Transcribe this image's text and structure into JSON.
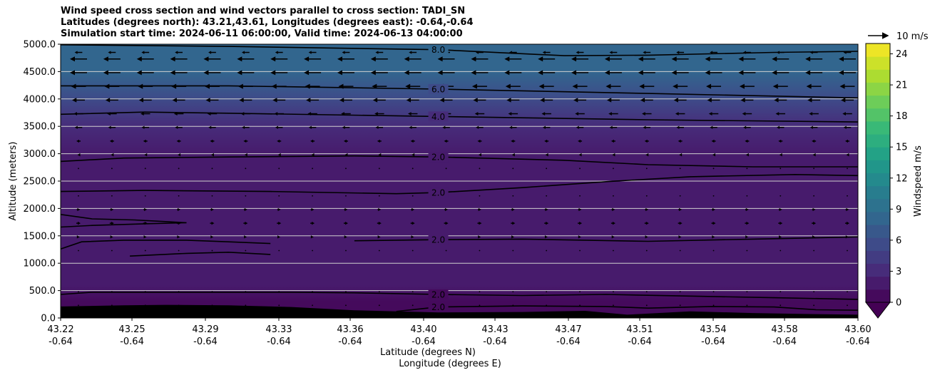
{
  "chart_data": {
    "type": "heatmap",
    "title_lines": [
      "Wind speed cross section and wind vectors parallel to cross section: TADI_SN",
      "Latitudes (degrees north): 43.21,43.61, Longitudes (degrees east): -0.64,-0.64",
      "Simulation start time: 2024-06-11 06:00:00, Valid time: 2024-06-13 04:00:00"
    ],
    "xlabel_line1": "Latitude (degrees N)",
    "xlabel_line2": "Longitude (degrees E)",
    "ylabel": "Altitude (meters)",
    "xlim": [
      43.22,
      43.6
    ],
    "ylim": [
      0,
      5000
    ],
    "x_ticks": [
      {
        "lat": "43.22",
        "lon": "-0.64",
        "value": 43.22
      },
      {
        "lat": "43.25",
        "lon": "-0.64",
        "value": 43.254
      },
      {
        "lat": "43.29",
        "lon": "-0.64",
        "value": 43.289
      },
      {
        "lat": "43.33",
        "lon": "-0.64",
        "value": 43.324
      },
      {
        "lat": "43.36",
        "lon": "-0.64",
        "value": 43.358
      },
      {
        "lat": "43.40",
        "lon": "-0.64",
        "value": 43.393
      },
      {
        "lat": "43.43",
        "lon": "-0.64",
        "value": 43.427
      },
      {
        "lat": "43.47",
        "lon": "-0.64",
        "value": 43.462
      },
      {
        "lat": "43.51",
        "lon": "-0.64",
        "value": 43.496
      },
      {
        "lat": "43.54",
        "lon": "-0.64",
        "value": 43.531
      },
      {
        "lat": "43.58",
        "lon": "-0.64",
        "value": 43.565
      },
      {
        "lat": "43.60",
        "lon": "-0.64",
        "value": 43.6
      }
    ],
    "y_ticks": [
      {
        "label": "0.0",
        "value": 0
      },
      {
        "label": "500.0",
        "value": 500
      },
      {
        "label": "1000.0",
        "value": 1000
      },
      {
        "label": "1500.0",
        "value": 1500
      },
      {
        "label": "2000.0",
        "value": 2000
      },
      {
        "label": "2500.0",
        "value": 2500
      },
      {
        "label": "3000.0",
        "value": 3000
      },
      {
        "label": "3500.0",
        "value": 3500
      },
      {
        "label": "4000.0",
        "value": 4000
      },
      {
        "label": "4500.0",
        "value": 4500
      },
      {
        "label": "5000.0",
        "value": 5000
      }
    ],
    "grid": {
      "horizontal": true,
      "color": "#d0d0d0"
    },
    "colorbar": {
      "label": "Windspeed m/s",
      "range": [
        0,
        25
      ],
      "ticks": [
        {
          "label": "0",
          "value": 0
        },
        {
          "label": "3",
          "value": 3
        },
        {
          "label": "6",
          "value": 6
        },
        {
          "label": "9",
          "value": 9
        },
        {
          "label": "12",
          "value": 12
        },
        {
          "label": "15",
          "value": 15
        },
        {
          "label": "18",
          "value": 18
        },
        {
          "label": "21",
          "value": 21
        },
        {
          "label": "24",
          "value": 24
        }
      ],
      "extend": "min",
      "colormap": "viridis"
    },
    "quiver_key": {
      "label": "10 m/s",
      "value": 10
    },
    "speed_profile": [
      {
        "alt": 0,
        "speed": 1.2
      },
      {
        "alt": 300,
        "speed": 1.0
      },
      {
        "alt": 600,
        "speed": 1.6
      },
      {
        "alt": 1000,
        "speed": 1.8
      },
      {
        "alt": 1500,
        "speed": 2.2
      },
      {
        "alt": 2000,
        "speed": 1.8
      },
      {
        "alt": 2500,
        "speed": 1.5
      },
      {
        "alt": 3000,
        "speed": 2.2
      },
      {
        "alt": 3500,
        "speed": 3.2
      },
      {
        "alt": 4000,
        "speed": 5.5
      },
      {
        "alt": 4500,
        "speed": 7.6
      },
      {
        "alt": 5000,
        "speed": 8.6
      }
    ],
    "vector_levels": [
      {
        "alt": 4850,
        "u": -3.6
      },
      {
        "alt": 4730,
        "u": -8.0
      },
      {
        "alt": 4480,
        "u": -8.0
      },
      {
        "alt": 4230,
        "u": -7.0
      },
      {
        "alt": 3980,
        "u": -6.0
      },
      {
        "alt": 3730,
        "u": -4.5
      },
      {
        "alt": 3480,
        "u": -3.5
      },
      {
        "alt": 3230,
        "u": -2.0
      },
      {
        "alt": 2980,
        "u": -1.0
      },
      {
        "alt": 2730,
        "u": -0.3
      },
      {
        "alt": 2230,
        "u": 0.3
      },
      {
        "alt": 1980,
        "u": 1.6
      },
      {
        "alt": 1730,
        "u": 2.0
      },
      {
        "alt": 1480,
        "u": 1.2
      },
      {
        "alt": 1230,
        "u": 0.4
      },
      {
        "alt": 480,
        "u": 0.3
      },
      {
        "alt": 230,
        "u": 0.3
      }
    ],
    "vector_columns": 24,
    "contours": [
      {
        "label": "8.0",
        "label_at": 43.4,
        "points": [
          [
            43.22,
            4990
          ],
          [
            43.3,
            4960
          ],
          [
            43.4,
            4900
          ],
          [
            43.46,
            4790
          ],
          [
            43.5,
            4800
          ],
          [
            43.56,
            4850
          ],
          [
            43.6,
            4870
          ]
        ]
      },
      {
        "label": "6.0",
        "label_at": 43.4,
        "points": [
          [
            43.22,
            4240
          ],
          [
            43.3,
            4240
          ],
          [
            43.4,
            4180
          ],
          [
            43.5,
            4100
          ],
          [
            43.6,
            4020
          ]
        ]
      },
      {
        "label": "4.0",
        "label_at": 43.4,
        "points": [
          [
            43.22,
            3720
          ],
          [
            43.26,
            3760
          ],
          [
            43.3,
            3740
          ],
          [
            43.4,
            3680
          ],
          [
            43.5,
            3620
          ],
          [
            43.6,
            3580
          ]
        ]
      },
      {
        "label": "2.0",
        "label_at": 43.4,
        "points": [
          [
            43.22,
            2860
          ],
          [
            43.25,
            2920
          ],
          [
            43.3,
            2940
          ],
          [
            43.36,
            2960
          ],
          [
            43.4,
            2940
          ],
          [
            43.46,
            2880
          ],
          [
            43.5,
            2800
          ],
          [
            43.55,
            2760
          ],
          [
            43.6,
            2760
          ]
        ]
      },
      {
        "label": "2.0",
        "label_at": 43.4,
        "points": [
          [
            43.22,
            2310
          ],
          [
            43.26,
            2330
          ],
          [
            43.32,
            2310
          ],
          [
            43.38,
            2270
          ],
          [
            43.4,
            2290
          ],
          [
            43.44,
            2380
          ],
          [
            43.48,
            2490
          ],
          [
            43.52,
            2580
          ],
          [
            43.57,
            2620
          ],
          [
            43.6,
            2600
          ]
        ]
      },
      {
        "label": "2.0",
        "label_at": 43.4,
        "points": [
          [
            43.36,
            1410
          ],
          [
            43.38,
            1420
          ],
          [
            43.4,
            1430
          ],
          [
            43.44,
            1440
          ],
          [
            43.47,
            1420
          ],
          [
            43.5,
            1400
          ],
          [
            43.55,
            1440
          ],
          [
            43.6,
            1480
          ]
        ]
      },
      {
        "label": "",
        "label_at": null,
        "points": [
          [
            43.22,
            1890
          ],
          [
            43.235,
            1810
          ],
          [
            43.255,
            1790
          ],
          [
            43.27,
            1760
          ],
          [
            43.28,
            1740
          ],
          [
            43.26,
            1720
          ],
          [
            43.235,
            1690
          ],
          [
            43.22,
            1660
          ]
        ]
      },
      {
        "label": "",
        "label_at": null,
        "points": [
          [
            43.22,
            1260
          ],
          [
            43.23,
            1390
          ],
          [
            43.25,
            1420
          ],
          [
            43.28,
            1420
          ],
          [
            43.3,
            1390
          ],
          [
            43.32,
            1360
          ]
        ]
      },
      {
        "label": "",
        "label_at": null,
        "points": [
          [
            43.253,
            1130
          ],
          [
            43.28,
            1180
          ],
          [
            43.3,
            1200
          ],
          [
            43.32,
            1160
          ]
        ]
      },
      {
        "label": "2.0",
        "label_at": 43.4,
        "points": [
          [
            43.22,
            430
          ],
          [
            43.235,
            470
          ],
          [
            43.27,
            470
          ],
          [
            43.3,
            470
          ],
          [
            43.33,
            470
          ],
          [
            43.36,
            460
          ],
          [
            43.4,
            430
          ],
          [
            43.44,
            410
          ],
          [
            43.48,
            430
          ],
          [
            43.52,
            400
          ],
          [
            43.56,
            370
          ],
          [
            43.6,
            340
          ]
        ]
      },
      {
        "label": "2.0",
        "label_at": 43.4,
        "points": [
          [
            43.38,
            120
          ],
          [
            43.4,
            200
          ],
          [
            43.44,
            220
          ],
          [
            43.48,
            210
          ],
          [
            43.5,
            180
          ],
          [
            43.53,
            210
          ],
          [
            43.56,
            200
          ],
          [
            43.58,
            150
          ],
          [
            43.6,
            140
          ]
        ]
      }
    ],
    "terrain": [
      [
        43.22,
        210
      ],
      [
        43.25,
        230
      ],
      [
        43.27,
        240
      ],
      [
        43.3,
        230
      ],
      [
        43.33,
        200
      ],
      [
        43.36,
        140
      ],
      [
        43.4,
        100
      ],
      [
        43.44,
        110
      ],
      [
        43.47,
        130
      ],
      [
        43.49,
        60
      ],
      [
        43.52,
        120
      ],
      [
        43.55,
        90
      ],
      [
        43.58,
        70
      ],
      [
        43.6,
        60
      ]
    ]
  }
}
